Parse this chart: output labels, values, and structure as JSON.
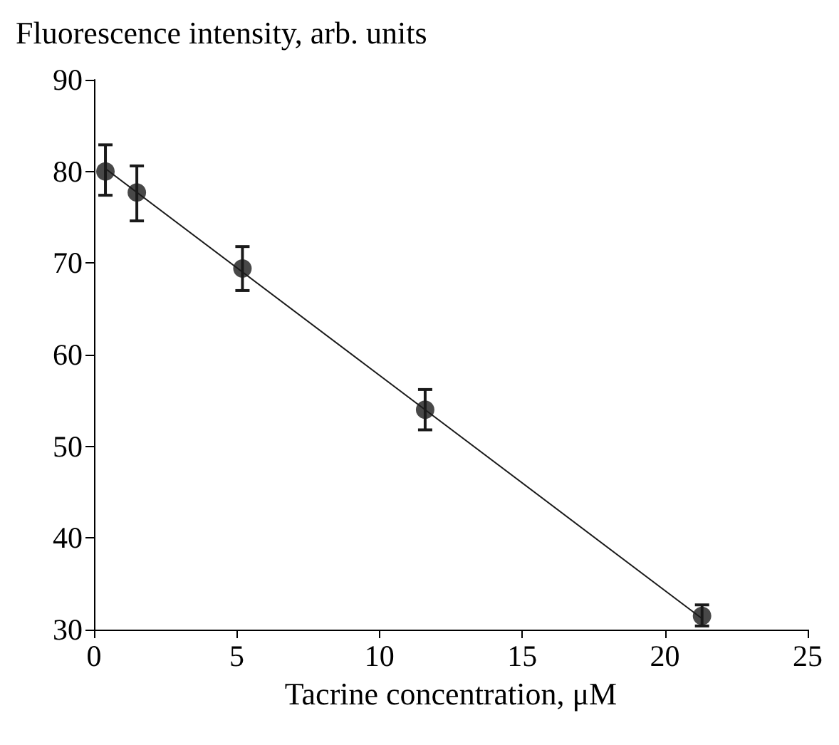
{
  "chart_data": {
    "type": "scatter",
    "xlabel": "Tacrine concentration, μM",
    "ylabel": "Fluorescence intensity, arb. units",
    "xlim": [
      0,
      25
    ],
    "xticks": [
      0,
      5,
      10,
      15,
      20,
      25
    ],
    "ylim": [
      30,
      90
    ],
    "yticks": [
      30,
      40,
      50,
      60,
      70,
      80,
      90
    ],
    "grid": false,
    "marker": "circle",
    "series": [
      {
        "color": "#1a1a1a",
        "x": [
          0.4,
          1.5,
          5.2,
          11.6,
          21.3
        ],
        "values": [
          80,
          77.7,
          69.4,
          54,
          31.5
        ],
        "errors": [
          [
            77.4,
            82.9
          ],
          [
            74.6,
            80.6
          ],
          [
            67,
            71.8
          ],
          [
            51.8,
            56.2
          ],
          [
            30.4,
            32.7
          ]
        ]
      },
      {
        "type": "line",
        "color": "#1a1a1a",
        "marker": "none",
        "x": [
          0.4,
          21.3
        ],
        "values": [
          80.3,
          31.2
        ]
      }
    ]
  }
}
